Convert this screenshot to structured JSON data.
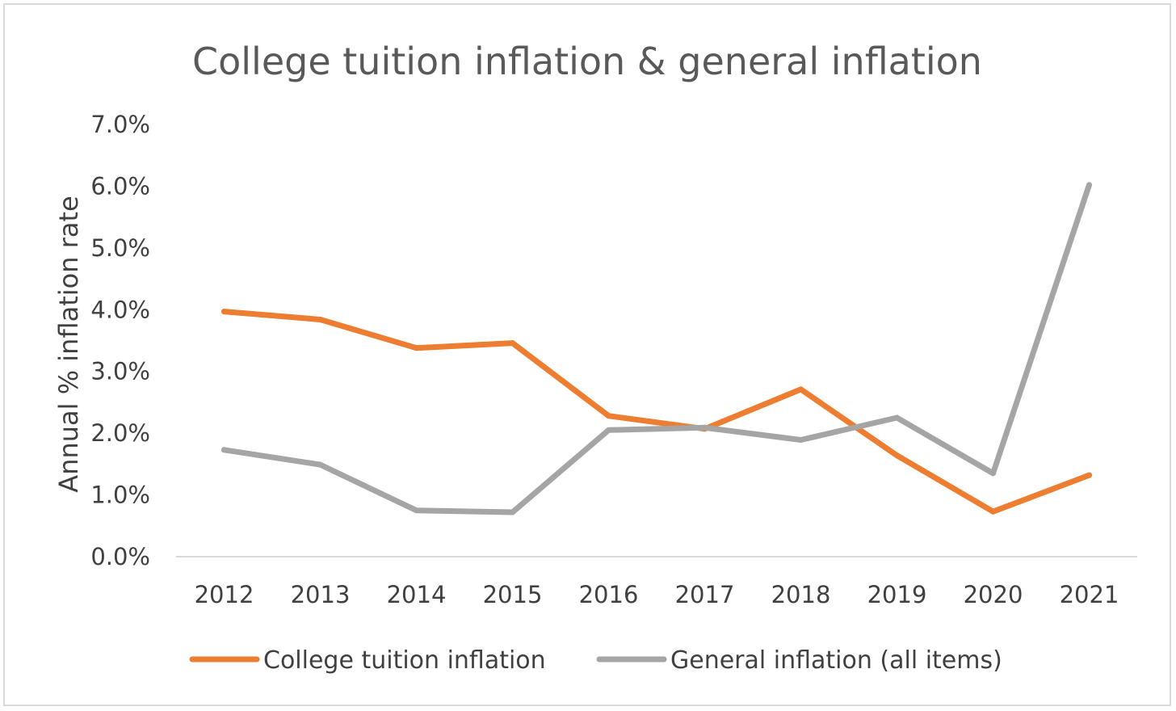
{
  "chart_data": {
    "type": "line",
    "title": "College tuition inflation & general inflation",
    "xlabel": "",
    "ylabel": "Annual % inflation rate",
    "categories": [
      "2012",
      "2013",
      "2014",
      "2015",
      "2016",
      "2017",
      "2018",
      "2019",
      "2020",
      "2021"
    ],
    "y_ticks": [
      "0.0%",
      "1.0%",
      "2.0%",
      "3.0%",
      "4.0%",
      "5.0%",
      "6.0%",
      "7.0%"
    ],
    "ylim": [
      0,
      7
    ],
    "grid": false,
    "legend_position": "bottom",
    "series": [
      {
        "name": "College tuition inflation",
        "color": "#ED7D31",
        "values": [
          3.97,
          3.84,
          3.38,
          3.46,
          2.28,
          2.07,
          2.71,
          1.64,
          0.73,
          1.32
        ]
      },
      {
        "name": "General inflation (all items)",
        "color": "#A5A5A5",
        "values": [
          1.73,
          1.49,
          0.75,
          0.72,
          2.05,
          2.09,
          1.89,
          2.25,
          1.35,
          6.02
        ]
      }
    ]
  }
}
